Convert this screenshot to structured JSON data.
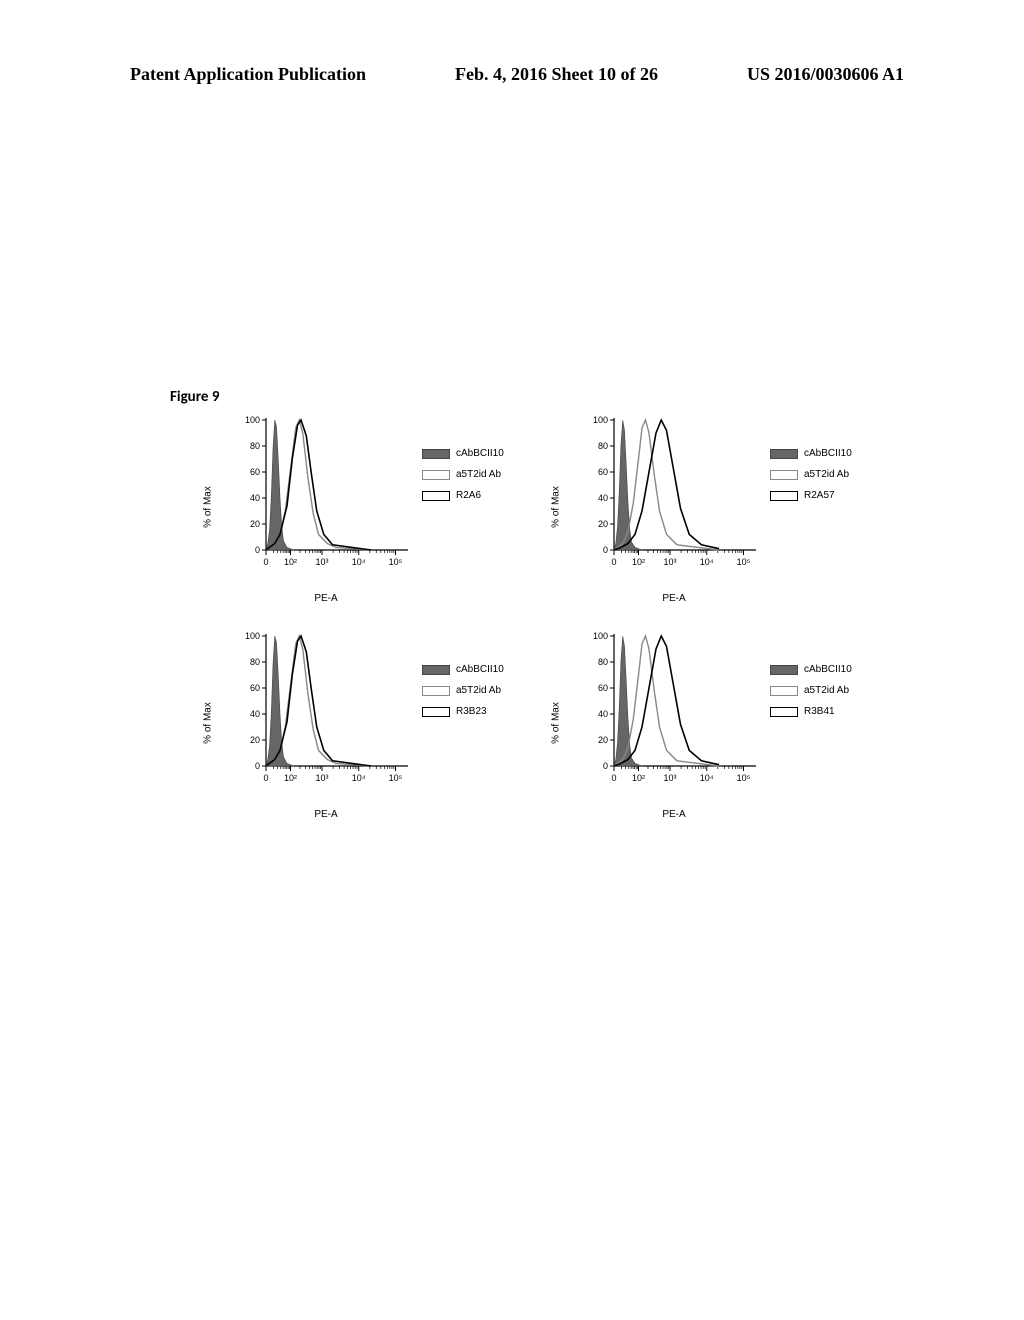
{
  "header": {
    "left": "Patent Application Publication",
    "center": "Feb. 4, 2016  Sheet 10 of 26",
    "right": "US 2016/0030606 A1"
  },
  "figure_label": "Figure 9",
  "common": {
    "ylabel": "% of Max",
    "xlabel": "PE-A",
    "ytick_labels": [
      "0",
      "20",
      "40",
      "60",
      "80",
      "100"
    ],
    "xtick_labels": [
      "0",
      "10²",
      "10³",
      "10⁴",
      "10⁵"
    ],
    "title_fontsize": 10,
    "label_fontsize": 10,
    "tick_fontsize": 9,
    "background_color": "#ffffff",
    "axis_color": "#000000",
    "fill_color": "#666666",
    "dotted_color": "#888888",
    "line_color": "#000000",
    "ylim": [
      0,
      100
    ],
    "ytick_step": 20
  },
  "panels": [
    {
      "id": "top-left",
      "type": "histogram",
      "legend": [
        {
          "style": "filled",
          "label": "cAbBCII10"
        },
        {
          "style": "outline-grey",
          "label": "a5T2id Ab"
        },
        {
          "style": "outline",
          "label": "R2A6"
        }
      ],
      "filled_points": [
        [
          0,
          0
        ],
        [
          2,
          5
        ],
        [
          4,
          15
        ],
        [
          6,
          40
        ],
        [
          8,
          78
        ],
        [
          10,
          100
        ],
        [
          12,
          95
        ],
        [
          14,
          70
        ],
        [
          16,
          40
        ],
        [
          18,
          18
        ],
        [
          20,
          7
        ],
        [
          24,
          2
        ],
        [
          32,
          0
        ]
      ],
      "dotted_points": [
        [
          0,
          0
        ],
        [
          4,
          2
        ],
        [
          10,
          5
        ],
        [
          16,
          12
        ],
        [
          22,
          30
        ],
        [
          28,
          62
        ],
        [
          34,
          94
        ],
        [
          38,
          100
        ],
        [
          42,
          90
        ],
        [
          48,
          55
        ],
        [
          54,
          28
        ],
        [
          60,
          12
        ],
        [
          70,
          5
        ],
        [
          80,
          2
        ],
        [
          120,
          0
        ]
      ],
      "solid_points": [
        [
          0,
          0
        ],
        [
          4,
          2
        ],
        [
          10,
          5
        ],
        [
          16,
          12
        ],
        [
          24,
          34
        ],
        [
          30,
          70
        ],
        [
          36,
          96
        ],
        [
          40,
          100
        ],
        [
          46,
          88
        ],
        [
          52,
          58
        ],
        [
          58,
          30
        ],
        [
          66,
          12
        ],
        [
          76,
          4
        ],
        [
          120,
          0
        ]
      ]
    },
    {
      "id": "top-right",
      "type": "histogram",
      "legend": [
        {
          "style": "filled",
          "label": "cAbBCII10"
        },
        {
          "style": "outline-grey",
          "label": "a5T2id Ab"
        },
        {
          "style": "outline",
          "label": "R2A57"
        }
      ],
      "filled_points": [
        [
          0,
          0
        ],
        [
          2,
          5
        ],
        [
          4,
          18
        ],
        [
          6,
          45
        ],
        [
          8,
          82
        ],
        [
          10,
          100
        ],
        [
          12,
          92
        ],
        [
          14,
          65
        ],
        [
          16,
          36
        ],
        [
          18,
          16
        ],
        [
          20,
          6
        ],
        [
          24,
          2
        ],
        [
          32,
          0
        ]
      ],
      "dotted_points": [
        [
          0,
          0
        ],
        [
          4,
          2
        ],
        [
          10,
          5
        ],
        [
          16,
          14
        ],
        [
          22,
          36
        ],
        [
          28,
          70
        ],
        [
          32,
          94
        ],
        [
          36,
          100
        ],
        [
          40,
          90
        ],
        [
          46,
          58
        ],
        [
          52,
          30
        ],
        [
          60,
          12
        ],
        [
          72,
          4
        ],
        [
          120,
          0
        ]
      ],
      "solid_points": [
        [
          0,
          0
        ],
        [
          8,
          2
        ],
        [
          16,
          5
        ],
        [
          24,
          12
        ],
        [
          32,
          30
        ],
        [
          40,
          60
        ],
        [
          48,
          90
        ],
        [
          54,
          100
        ],
        [
          60,
          92
        ],
        [
          68,
          62
        ],
        [
          76,
          32
        ],
        [
          86,
          12
        ],
        [
          100,
          4
        ],
        [
          120,
          1
        ]
      ]
    },
    {
      "id": "bottom-left",
      "type": "histogram",
      "legend": [
        {
          "style": "filled",
          "label": "cAbBCII10"
        },
        {
          "style": "outline-grey",
          "label": "a5T2id Ab"
        },
        {
          "style": "outline",
          "label": "R3B23"
        }
      ],
      "filled_points": [
        [
          0,
          0
        ],
        [
          2,
          5
        ],
        [
          4,
          15
        ],
        [
          6,
          40
        ],
        [
          8,
          78
        ],
        [
          10,
          100
        ],
        [
          12,
          95
        ],
        [
          14,
          70
        ],
        [
          16,
          40
        ],
        [
          18,
          18
        ],
        [
          20,
          7
        ],
        [
          24,
          2
        ],
        [
          32,
          0
        ]
      ],
      "dotted_points": [
        [
          0,
          0
        ],
        [
          4,
          2
        ],
        [
          10,
          5
        ],
        [
          16,
          12
        ],
        [
          22,
          30
        ],
        [
          28,
          62
        ],
        [
          34,
          94
        ],
        [
          38,
          100
        ],
        [
          42,
          90
        ],
        [
          48,
          55
        ],
        [
          54,
          28
        ],
        [
          60,
          12
        ],
        [
          70,
          5
        ],
        [
          80,
          2
        ],
        [
          120,
          0
        ]
      ],
      "solid_points": [
        [
          0,
          0
        ],
        [
          4,
          2
        ],
        [
          10,
          5
        ],
        [
          16,
          12
        ],
        [
          24,
          34
        ],
        [
          30,
          70
        ],
        [
          36,
          96
        ],
        [
          40,
          100
        ],
        [
          46,
          88
        ],
        [
          52,
          58
        ],
        [
          58,
          30
        ],
        [
          66,
          12
        ],
        [
          76,
          4
        ],
        [
          120,
          0
        ]
      ]
    },
    {
      "id": "bottom-right",
      "type": "histogram",
      "legend": [
        {
          "style": "filled",
          "label": "cAbBCII10"
        },
        {
          "style": "outline-grey",
          "label": "a5T2id Ab"
        },
        {
          "style": "outline",
          "label": "R3B41"
        }
      ],
      "filled_points": [
        [
          0,
          0
        ],
        [
          2,
          5
        ],
        [
          4,
          18
        ],
        [
          6,
          45
        ],
        [
          8,
          82
        ],
        [
          10,
          100
        ],
        [
          12,
          92
        ],
        [
          14,
          65
        ],
        [
          16,
          36
        ],
        [
          18,
          16
        ],
        [
          20,
          6
        ],
        [
          24,
          2
        ],
        [
          32,
          0
        ]
      ],
      "dotted_points": [
        [
          0,
          0
        ],
        [
          4,
          2
        ],
        [
          10,
          5
        ],
        [
          16,
          14
        ],
        [
          22,
          36
        ],
        [
          28,
          70
        ],
        [
          32,
          94
        ],
        [
          36,
          100
        ],
        [
          40,
          90
        ],
        [
          46,
          58
        ],
        [
          52,
          30
        ],
        [
          60,
          12
        ],
        [
          72,
          4
        ],
        [
          120,
          0
        ]
      ],
      "solid_points": [
        [
          0,
          0
        ],
        [
          8,
          2
        ],
        [
          16,
          5
        ],
        [
          24,
          12
        ],
        [
          32,
          30
        ],
        [
          40,
          60
        ],
        [
          48,
          90
        ],
        [
          54,
          100
        ],
        [
          60,
          92
        ],
        [
          68,
          62
        ],
        [
          76,
          32
        ],
        [
          86,
          12
        ],
        [
          100,
          4
        ],
        [
          120,
          1
        ]
      ]
    }
  ]
}
